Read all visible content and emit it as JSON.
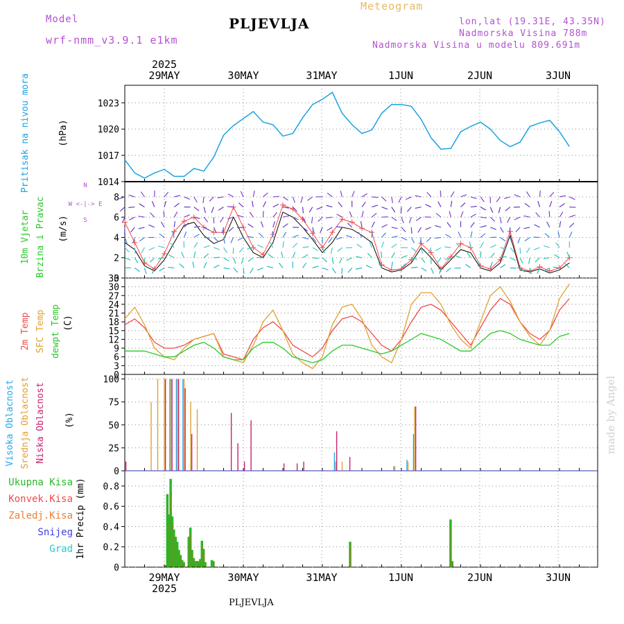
{
  "header": {
    "model_label": "Model",
    "model_name": "wrf-nmm_v3.9.1 e1km",
    "station": "PLJEVLJA",
    "meteogram": "Meteogram",
    "lonlat": "lon,lat (19.31E, 43.35N)",
    "elevation": "Nadmorska Visina 788m",
    "model_elevation": "Nadmorska Visina u modelu 809.691m",
    "bottom_station": "PLJEVLJA",
    "credit": "made by Angel"
  },
  "colors": {
    "pressure": "#1aa3e0",
    "t2m": "#f04a4a",
    "sfc": "#e0a030",
    "dew": "#28c828",
    "cloud_high": "#20a8e8",
    "cloud_mid": "#e0a030",
    "cloud_low": "#c8206e",
    "precip_total": "#28b828",
    "precip_conv": "#f04a4a",
    "precip_ice": "#f07a30",
    "precip_snow": "#4040e0",
    "precip_grad": "#28c8c8",
    "model_label": "#b450d2",
    "meteogram_label": "#e8b860"
  },
  "chart_data": {
    "type": "line",
    "time_axis": {
      "year": "2025",
      "days": [
        "29MAY",
        "30MAY",
        "31MAY",
        "1JUN",
        "2JUN",
        "3JUN"
      ],
      "step_hours": 3,
      "start": "2025-05-28 12:00",
      "end": "2025-06-03 12:00"
    },
    "panels": [
      {
        "id": "pressure",
        "type": "line",
        "ylabel": [
          "Pritisak na nivou mora",
          "(hPa)"
        ],
        "ylim": [
          1014,
          1025
        ],
        "yticks": [
          1014,
          1017,
          1020,
          1023
        ],
        "series": [
          {
            "values": [
              1016.5,
              1015.0,
              1014.4,
              1015.0,
              1015.4,
              1014.6,
              1014.6,
              1015.5,
              1015.2,
              1016.8,
              1019.3,
              1020.4,
              1021.2,
              1022.0,
              1020.8,
              1020.5,
              1019.2,
              1019.5,
              1021.3,
              1022.8,
              1023.4,
              1024.2,
              1021.8,
              1020.5,
              1019.5,
              1019.9,
              1021.8,
              1022.8,
              1022.8,
              1022.6,
              1021.1,
              1019.0,
              1017.7,
              1017.8,
              1019.7,
              1020.3,
              1020.8,
              1020.0,
              1018.7,
              1018.0,
              1018.5,
              1020.3,
              1020.7,
              1021.0,
              1019.7,
              1018.0
            ]
          }
        ]
      },
      {
        "id": "wind",
        "type": "line",
        "ylabel": [
          "10m Vjetar",
          "Brzina i Pravac",
          "(m/s)"
        ],
        "compass": [
          "N",
          "W <-|-> E",
          "S"
        ],
        "ylim": [
          0,
          9.5
        ],
        "yticks": [
          0,
          2,
          4,
          6,
          8
        ],
        "series": [
          {
            "name": "speed",
            "values": [
              3.5,
              2.8,
              1.2,
              0.7,
              1.8,
              3.5,
              5.2,
              5.5,
              4.2,
              3.4,
              3.8,
              6.0,
              4.0,
              2.5,
              2.0,
              3.5,
              6.5,
              6.0,
              5.0,
              3.8,
              2.5,
              3.5,
              5.0,
              4.8,
              4.2,
              3.5,
              1.0,
              0.6,
              0.8,
              1.5,
              3.0,
              2.0,
              0.8,
              1.8,
              2.8,
              2.5,
              1.0,
              0.7,
              1.5,
              4.2,
              0.8,
              0.6,
              0.9,
              0.5,
              0.8,
              1.5
            ]
          },
          {
            "name": "gust",
            "values": [
              5.5,
              3.5,
              1.5,
              0.9,
              2.4,
              4.6,
              5.6,
              6.0,
              5.0,
              4.5,
              4.5,
              7.0,
              5.0,
              3.0,
              2.3,
              4.3,
              7.2,
              6.8,
              5.8,
              4.4,
              3.0,
              4.5,
              5.8,
              5.5,
              4.9,
              4.5,
              1.3,
              0.8,
              0.9,
              1.8,
              3.4,
              2.5,
              0.9,
              2.1,
              3.4,
              3.0,
              1.2,
              0.9,
              1.8,
              4.6,
              1.0,
              0.7,
              1.1,
              0.7,
              1.0,
              2.0
            ]
          }
        ]
      },
      {
        "id": "temperature",
        "type": "line",
        "ylabel": [
          "2m Temp",
          "SFC Temp",
          "dewpt Temp",
          "(C)"
        ],
        "ylim": [
          0,
          33
        ],
        "yticks": [
          0,
          3,
          6,
          9,
          12,
          15,
          18,
          21,
          24,
          27,
          30,
          33
        ],
        "series": [
          {
            "name": "2m Temp",
            "values": [
              17,
              19,
              16,
              11,
              9,
              9,
              10,
              12,
              13,
              14,
              7,
              6,
              5,
              12,
              16,
              18,
              15,
              10,
              8,
              6,
              9,
              15,
              19,
              20,
              18,
              14,
              10,
              8,
              12,
              18,
              23,
              24,
              22,
              18,
              14,
              10,
              16,
              22,
              26,
              24,
              18,
              14,
              12,
              15,
              22,
              26
            ]
          },
          {
            "name": "SFC Temp",
            "values": [
              19,
              23,
              17,
              9,
              6,
              5,
              9,
              12,
              13,
              14,
              6,
              5,
              4,
              10,
              18,
              22,
              15,
              7,
              4,
              2,
              6,
              17,
              23,
              24,
              19,
              10,
              6,
              4,
              12,
              24,
              28,
              28,
              24,
              17,
              12,
              9,
              18,
              27,
              30,
              25,
              18,
              13,
              10,
              15,
              26,
              31
            ]
          },
          {
            "name": "dewpt Temp",
            "values": [
              8,
              8,
              8,
              7,
              6,
              6,
              8,
              10,
              11,
              9,
              6,
              5,
              5,
              9,
              11,
              11,
              9,
              6,
              5,
              4,
              5,
              8,
              10,
              10,
              9,
              8,
              7,
              8,
              10,
              12,
              14,
              13,
              12,
              10,
              8,
              8,
              11,
              14,
              15,
              14,
              12,
              11,
              10,
              10,
              13,
              14
            ]
          }
        ]
      },
      {
        "id": "clouds",
        "type": "bar",
        "ylabel": [
          "Visoka Oblacnost",
          "Srednja Oblacnost",
          "Niska Oblacnost",
          "(%)"
        ],
        "ylim": [
          0,
          105
        ],
        "yticks": [
          0,
          25,
          50,
          75,
          100
        ],
        "series": [
          {
            "name": "Visoka Oblacnost",
            "values": [
              0,
              0,
              0,
              0,
              0,
              0,
              0,
              100,
              100,
              100,
              0,
              0,
              0,
              0,
              0,
              0,
              0,
              0,
              0,
              0,
              0,
              0,
              0,
              0,
              0,
              0,
              0,
              0,
              0,
              0,
              0,
              0,
              20,
              0,
              0,
              0,
              0,
              0,
              0,
              0,
              0,
              5,
              0,
              12,
              40,
              0,
              0,
              0,
              0,
              0,
              0,
              0,
              0,
              0,
              0,
              0,
              0,
              0,
              0,
              0,
              0,
              0,
              0,
              0,
              0,
              0,
              0,
              0,
              0,
              0,
              0,
              0
            ]
          },
          {
            "name": "Srednja Oblacnost",
            "values": [
              0,
              0,
              0,
              0,
              75,
              100,
              100,
              100,
              100,
              100,
              75,
              67,
              0,
              0,
              0,
              0,
              0,
              0,
              0,
              0,
              0,
              0,
              0,
              0,
              0,
              0,
              0,
              0,
              0,
              0,
              0,
              0,
              10,
              10,
              0,
              0,
              0,
              0,
              0,
              0,
              0,
              5,
              0,
              10,
              70,
              0,
              0,
              0,
              0,
              0,
              0,
              0,
              0,
              0,
              0,
              0,
              0,
              0,
              0,
              0,
              0,
              0,
              0,
              0,
              0,
              0,
              0,
              0,
              0,
              0,
              0,
              0
            ]
          },
          {
            "name": "Niska Oblacnost",
            "values": [
              10,
              0,
              0,
              0,
              0,
              0,
              100,
              100,
              100,
              90,
              40,
              0,
              0,
              0,
              0,
              0,
              63,
              30,
              10,
              55,
              0,
              0,
              0,
              0,
              8,
              0,
              8,
              10,
              0,
              0,
              0,
              0,
              43,
              0,
              15,
              0,
              0,
              0,
              0,
              0,
              0,
              0,
              0,
              0,
              70,
              0,
              0,
              0,
              0,
              0,
              0,
              0,
              0,
              0,
              0,
              0,
              0,
              0,
              0,
              0,
              0,
              0,
              0,
              0,
              0,
              0,
              0,
              0,
              0,
              0,
              0,
              0
            ]
          }
        ]
      },
      {
        "id": "precip",
        "type": "bar",
        "ylabel": [
          "1hr Precip (mm)"
        ],
        "legend": [
          "Ukupna Kisa",
          "Konvek.Kisa",
          "Zaledj.Kisa",
          "Snijeg",
          "Grad"
        ],
        "ylim": [
          0,
          0.95
        ],
        "yticks": [
          0,
          0.2,
          0.4,
          0.6,
          0.8
        ],
        "series": [
          {
            "name": "Ukupna Kisa",
            "values": [
              0,
              0,
              0,
              0,
              0,
              0,
              0,
              0,
              0,
              0,
              0,
              0,
              0,
              0,
              0,
              0,
              0,
              0,
              0,
              0,
              0,
              0,
              0,
              0,
              0.02,
              0.72,
              0.52,
              0.87,
              0.5,
              0.37,
              0.3,
              0.25,
              0.17,
              0.12,
              0.07,
              0.05,
              0,
              0,
              0.3,
              0.39,
              0.17,
              0.09,
              0.06,
              0.06,
              0.06,
              0.08,
              0.26,
              0.18,
              0.05,
              0,
              0,
              0,
              0.07,
              0.06,
              0,
              0,
              0,
              0,
              0,
              0,
              0,
              0,
              0,
              0,
              0,
              0,
              0,
              0,
              0,
              0,
              0,
              0,
              0,
              0,
              0,
              0,
              0,
              0,
              0,
              0,
              0,
              0,
              0,
              0,
              0,
              0,
              0,
              0,
              0,
              0,
              0,
              0,
              0,
              0,
              0,
              0,
              0,
              0,
              0,
              0,
              0,
              0,
              0,
              0,
              0,
              0,
              0,
              0,
              0,
              0,
              0,
              0,
              0,
              0,
              0,
              0,
              0,
              0,
              0,
              0,
              0,
              0,
              0,
              0,
              0,
              0,
              0,
              0,
              0,
              0,
              0,
              0,
              0,
              0,
              0,
              0,
              0.25,
              0,
              0,
              0,
              0,
              0,
              0,
              0,
              0,
              0,
              0,
              0,
              0,
              0,
              0,
              0,
              0,
              0,
              0,
              0,
              0,
              0,
              0,
              0,
              0,
              0,
              0,
              0,
              0,
              0,
              0,
              0,
              0,
              0,
              0,
              0,
              0,
              0,
              0,
              0,
              0,
              0,
              0,
              0,
              0,
              0,
              0,
              0,
              0,
              0,
              0,
              0,
              0,
              0,
              0,
              0,
              0,
              0,
              0,
              0,
              0,
              0.47,
              0.06,
              0,
              0,
              0,
              0,
              0,
              0,
              0,
              0,
              0,
              0,
              0,
              0,
              0,
              0,
              0,
              0,
              0,
              0,
              0,
              0,
              0,
              0,
              0,
              0,
              0,
              0,
              0,
              0,
              0,
              0,
              0,
              0,
              0,
              0,
              0,
              0,
              0,
              0,
              0,
              0,
              0,
              0,
              0,
              0,
              0,
              0,
              0,
              0,
              0,
              0,
              0,
              0,
              0,
              0,
              0,
              0,
              0,
              0,
              0,
              0,
              0,
              0,
              0,
              0,
              0,
              0,
              0,
              0,
              0,
              0,
              0,
              0,
              0,
              0,
              0,
              0,
              0,
              0,
              0,
              0,
              0,
              0,
              0,
              0,
              0,
              0,
              0,
              0,
              0,
              0,
              0,
              0,
              0,
              0,
              0,
              0,
              0,
              0,
              0,
              0,
              0,
              0,
              0,
              0,
              0,
              0,
              0,
              0,
              0,
              0,
              0,
              0,
              0,
              0,
              0,
              0,
              0,
              0,
              0,
              0,
              0,
              0,
              0,
              0,
              0,
              0,
              0,
              0,
              0,
              0,
              0,
              0,
              0,
              0,
              0,
              0,
              0,
              0
            ]
          }
        ]
      }
    ]
  }
}
